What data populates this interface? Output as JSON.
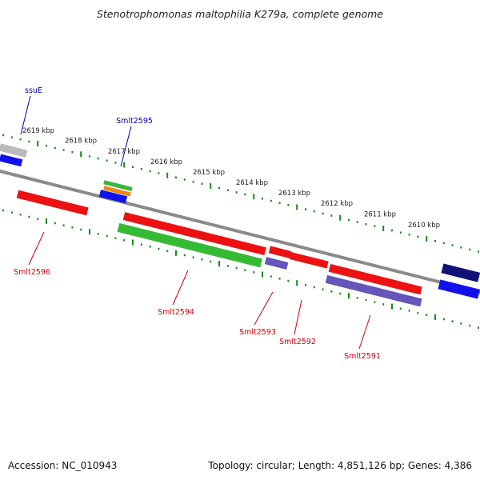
{
  "title": "Stenotrophomonas maltophilia K279a, complete genome",
  "footer": {
    "accession": "Accession: NC_010943",
    "topology": "Topology: circular; Length: 4,851,126 bp; Genes: 4,386"
  },
  "colors": {
    "backbone": "#8a8a8a",
    "tick": "#138a13",
    "label_red": "#cc0000",
    "label_blue": "#0000aa",
    "gene_red": "#ee1111",
    "gene_green": "#33bb33",
    "gene_blue": "#1111ee",
    "gene_navy": "#111177",
    "gene_purple": "#6655bb",
    "gene_gray": "#bbbbbb",
    "gene_orange": "#ee8811"
  },
  "scale": {
    "unit": "kbp",
    "labels": [
      "2619 kbp",
      "2618 kbp",
      "2617 kbp",
      "2616 kbp",
      "2615 kbp",
      "2614 kbp",
      "2613 kbp",
      "2612 kbp",
      "2611 kbp",
      "2610 kbp"
    ]
  },
  "genes": [
    {
      "name": "ssuE",
      "label": "ssuE",
      "label_color": "blue"
    },
    {
      "name": "Smlt2595",
      "label": "Smlt2595",
      "label_color": "blue"
    },
    {
      "name": "Smlt2596",
      "label": "Smlt2596",
      "label_color": "red"
    },
    {
      "name": "Smlt2594",
      "label": "Smlt2594",
      "label_color": "red"
    },
    {
      "name": "Smlt2593",
      "label": "Smlt2593",
      "label_color": "red"
    },
    {
      "name": "Smlt2592",
      "label": "Smlt2592",
      "label_color": "red"
    },
    {
      "name": "Smlt2591",
      "label": "Smlt2591",
      "label_color": "red"
    }
  ]
}
